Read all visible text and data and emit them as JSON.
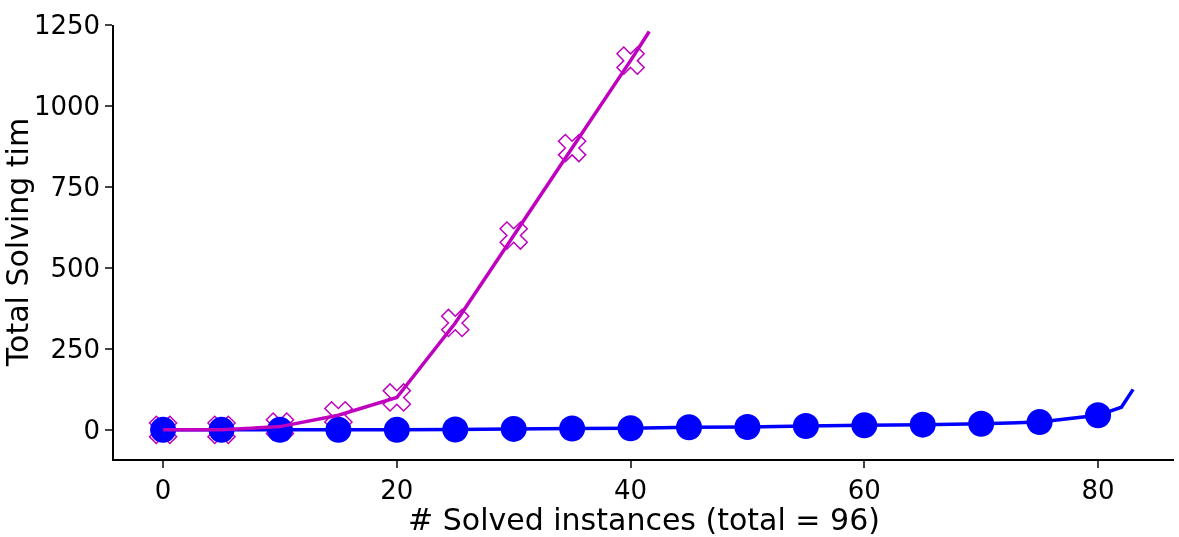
{
  "chart_data": {
    "type": "line",
    "xlabel": "# Solved instances (total = 96)",
    "ylabel": "Total Solving tim",
    "xlim": [
      -4.2,
      86.5
    ],
    "ylim": [
      -90,
      1250
    ],
    "xticks": [
      0,
      20,
      40,
      60,
      80
    ],
    "yticks": [
      0,
      250,
      500,
      750,
      1000,
      1250
    ],
    "series": [
      {
        "type": "scatter",
        "color": "#bf00bf",
        "marker": "cross",
        "x": [
          0,
          5,
          10,
          15,
          20,
          25,
          30,
          35,
          40
        ],
        "values": [
          0,
          0,
          10,
          45,
          100,
          330,
          600,
          870,
          1140
        ]
      },
      {
        "color": "#0000ff",
        "marker": "none",
        "x": [
          0,
          5,
          10,
          15,
          20,
          25,
          30,
          35,
          40,
          45,
          50,
          55,
          60,
          65,
          70,
          75,
          80,
          82,
          83
        ],
        "values": [
          0,
          0,
          0,
          0,
          0,
          1,
          3,
          4,
          5,
          8,
          9,
          12,
          14,
          16,
          19,
          24,
          45,
          70,
          125
        ]
      },
      {
        "type": "scatter",
        "color": "#0000ff",
        "marker": "circle",
        "x": [
          0,
          5,
          10,
          15,
          20,
          25,
          30,
          35,
          40,
          45,
          50,
          55,
          60,
          65,
          70,
          75,
          80
        ],
        "values": [
          0,
          0,
          0,
          0,
          0,
          1,
          3,
          4,
          5,
          8,
          9,
          12,
          14,
          16,
          19,
          24,
          45
        ]
      },
      {
        "color": "#bf00bf",
        "marker": "none",
        "x": [
          0,
          5,
          10,
          15,
          20,
          25,
          30,
          35,
          40,
          41.6
        ],
        "values": [
          0,
          0,
          10,
          45,
          100,
          330,
          600,
          870,
          1140,
          1230
        ]
      }
    ]
  }
}
